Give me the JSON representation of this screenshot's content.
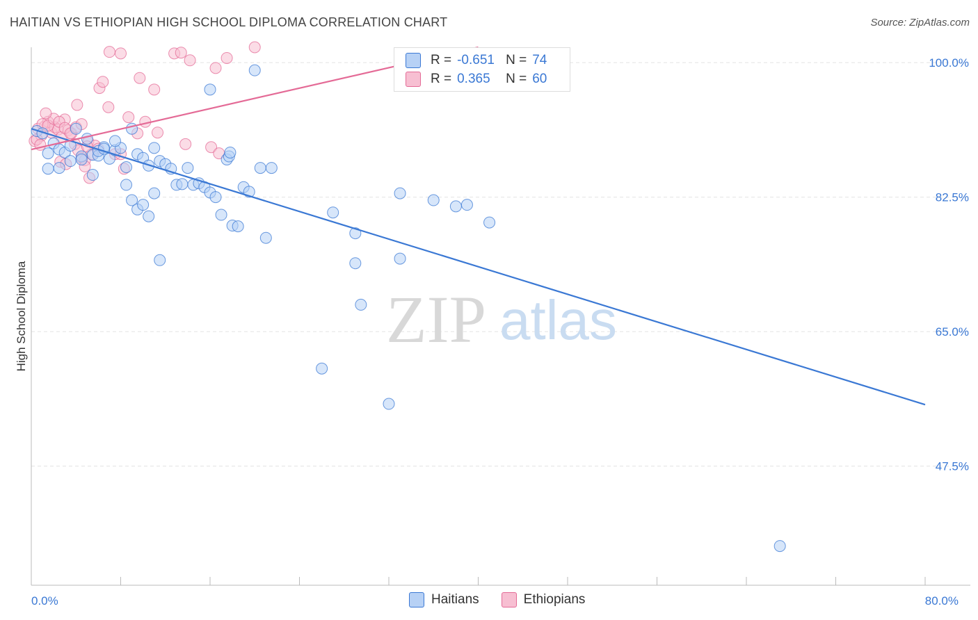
{
  "title": "HAITIAN VS ETHIOPIAN HIGH SCHOOL DIPLOMA CORRELATION CHART",
  "source": "Source: ZipAtlas.com",
  "watermark": {
    "zip": "ZIP",
    "atlas": "atlas"
  },
  "legend_top": {
    "r_label": "R =",
    "n_label": "N =",
    "rows": [
      {
        "r": "-0.651",
        "n": "74"
      },
      {
        "r": "0.365",
        "n": "60"
      }
    ]
  },
  "legend_bottom": {
    "haitians": "Haitians",
    "ethiopians": "Ethiopians"
  },
  "colors": {
    "blue": "#3a78d4",
    "blue_fill": "#b7d1f5",
    "pink": "#e46a96",
    "pink_fill": "#f7bfd2"
  },
  "chart_data": {
    "type": "scatter",
    "title": "HAITIAN VS ETHIOPIAN HIGH SCHOOL DIPLOMA CORRELATION CHART",
    "xlabel": "",
    "ylabel": "High School Diploma",
    "xlim": [
      0,
      80
    ],
    "ylim": [
      32.0,
      102.0
    ],
    "x_tick_labels": [
      {
        "value": 0,
        "label": "0.0%"
      },
      {
        "value": 80,
        "label": "80.0%"
      }
    ],
    "y_tick_labels": [
      {
        "value": 100,
        "label": "100.0%"
      },
      {
        "value": 82.5,
        "label": "82.5%"
      },
      {
        "value": 65,
        "label": "65.0%"
      },
      {
        "value": 47.5,
        "label": "47.5%"
      }
    ],
    "series": [
      {
        "name": "Haitians",
        "r": -0.651,
        "n": 74,
        "trend": {
          "x0": 0,
          "y0": 91.4,
          "x1": 80,
          "y1": 55.5
        },
        "points": [
          [
            0.5,
            91.1
          ],
          [
            1.0,
            90.8
          ],
          [
            1.5,
            88.2
          ],
          [
            2.0,
            89.5
          ],
          [
            2.5,
            88.7
          ],
          [
            3.0,
            88.3
          ],
          [
            3.5,
            89.2
          ],
          [
            4.0,
            91.4
          ],
          [
            4.5,
            87.8
          ],
          [
            5.0,
            90.1
          ],
          [
            5.5,
            88.0
          ],
          [
            6.0,
            87.9
          ],
          [
            6.5,
            89.0
          ],
          [
            7.0,
            87.5
          ],
          [
            7.5,
            88.6
          ],
          [
            8.0,
            88.9
          ],
          [
            8.5,
            86.4
          ],
          [
            9.0,
            91.4
          ],
          [
            9.5,
            88.1
          ],
          [
            10.0,
            87.6
          ],
          [
            1.5,
            86.2
          ],
          [
            2.5,
            86.3
          ],
          [
            3.5,
            87.2
          ],
          [
            4.5,
            87.4
          ],
          [
            5.5,
            85.4
          ],
          [
            6.0,
            88.5
          ],
          [
            6.5,
            88.8
          ],
          [
            7.5,
            89.8
          ],
          [
            10.5,
            86.6
          ],
          [
            11.0,
            88.9
          ],
          [
            11.5,
            87.2
          ],
          [
            12.0,
            86.8
          ],
          [
            12.5,
            86.2
          ],
          [
            13.0,
            84.1
          ],
          [
            13.5,
            84.2
          ],
          [
            14.0,
            86.3
          ],
          [
            14.5,
            84.1
          ],
          [
            15.0,
            84.3
          ],
          [
            15.5,
            83.8
          ],
          [
            16.0,
            83.1
          ],
          [
            16.5,
            82.5
          ],
          [
            17.0,
            80.2
          ],
          [
            17.5,
            87.4
          ],
          [
            17.7,
            87.8
          ],
          [
            17.8,
            88.3
          ],
          [
            18.0,
            78.8
          ],
          [
            18.5,
            78.7
          ],
          [
            19.0,
            83.8
          ],
          [
            19.5,
            83.2
          ],
          [
            20.0,
            99.0
          ],
          [
            20.5,
            86.3
          ],
          [
            21.0,
            77.2
          ],
          [
            21.5,
            86.3
          ],
          [
            8.5,
            84.1
          ],
          [
            9.0,
            82.1
          ],
          [
            9.5,
            80.9
          ],
          [
            10.0,
            81.5
          ],
          [
            10.5,
            80.0
          ],
          [
            11.0,
            83.0
          ],
          [
            11.5,
            74.3
          ],
          [
            16.0,
            96.5
          ],
          [
            27.0,
            80.5
          ],
          [
            29.0,
            73.9
          ],
          [
            29.0,
            77.8
          ],
          [
            29.5,
            68.5
          ],
          [
            26.0,
            60.2
          ],
          [
            32.0,
            55.6
          ],
          [
            33.0,
            83.0
          ],
          [
            36.0,
            82.1
          ],
          [
            38.0,
            81.3
          ],
          [
            39.0,
            81.5
          ],
          [
            41.0,
            79.2
          ],
          [
            33.0,
            74.5
          ],
          [
            67.0,
            37.1
          ]
        ]
      },
      {
        "name": "Ethiopians",
        "r": 0.365,
        "n": 60,
        "trend": {
          "x0": 0,
          "y0": 88.7,
          "x1": 40,
          "y1": 102.0
        },
        "points": [
          [
            0.3,
            89.8
          ],
          [
            0.6,
            91.4
          ],
          [
            0.9,
            90.5
          ],
          [
            1.2,
            91.7
          ],
          [
            1.5,
            92.3
          ],
          [
            1.8,
            90.9
          ],
          [
            2.1,
            91.6
          ],
          [
            2.4,
            91.3
          ],
          [
            2.7,
            90.3
          ],
          [
            3.0,
            92.6
          ],
          [
            3.3,
            91.2
          ],
          [
            3.6,
            90.8
          ],
          [
            3.9,
            89.4
          ],
          [
            4.2,
            88.6
          ],
          [
            4.5,
            87.6
          ],
          [
            4.8,
            87.3
          ],
          [
            5.1,
            89.7
          ],
          [
            5.4,
            88.1
          ],
          [
            5.7,
            89.2
          ],
          [
            6.0,
            88.8
          ],
          [
            0.5,
            90.0
          ],
          [
            1.0,
            92.0
          ],
          [
            1.5,
            91.8
          ],
          [
            2.0,
            92.7
          ],
          [
            2.5,
            92.3
          ],
          [
            3.0,
            91.5
          ],
          [
            3.5,
            90.8
          ],
          [
            4.0,
            91.6
          ],
          [
            4.5,
            92.0
          ],
          [
            5.0,
            89.1
          ],
          [
            0.8,
            89.3
          ],
          [
            1.3,
            93.4
          ],
          [
            2.6,
            87.1
          ],
          [
            3.1,
            86.8
          ],
          [
            4.1,
            94.5
          ],
          [
            4.8,
            86.5
          ],
          [
            5.2,
            85.0
          ],
          [
            6.1,
            96.7
          ],
          [
            6.4,
            97.5
          ],
          [
            6.9,
            94.2
          ],
          [
            7.5,
            88.1
          ],
          [
            8.0,
            88.1
          ],
          [
            8.3,
            86.2
          ],
          [
            8.7,
            92.9
          ],
          [
            9.5,
            90.8
          ],
          [
            9.7,
            98.0
          ],
          [
            10.2,
            92.3
          ],
          [
            11.3,
            90.9
          ],
          [
            12.8,
            101.2
          ],
          [
            13.4,
            101.3
          ],
          [
            14.2,
            100.3
          ],
          [
            13.8,
            89.4
          ],
          [
            16.1,
            89.0
          ],
          [
            7.0,
            101.4
          ],
          [
            8.0,
            101.2
          ],
          [
            11.0,
            96.5
          ],
          [
            16.5,
            99.3
          ],
          [
            16.8,
            88.2
          ],
          [
            17.5,
            100.6
          ],
          [
            20.0,
            102.0
          ]
        ]
      }
    ]
  }
}
